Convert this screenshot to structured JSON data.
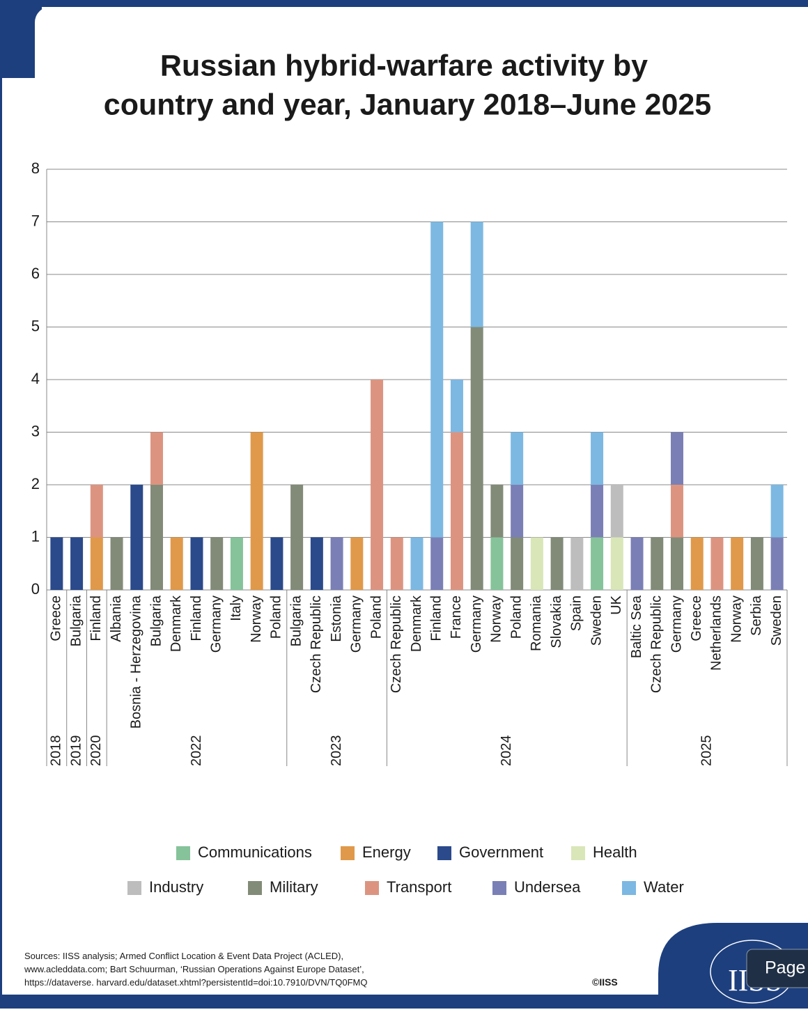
{
  "chart_data": {
    "type": "stacked_bar",
    "title": [
      "Russian hybrid-warfare activity by",
      "country and year, January 2018–June 2025"
    ],
    "groups": [
      {
        "label": "2018",
        "categories": [
          "Greece"
        ]
      },
      {
        "label": "2019",
        "categories": [
          "Bulgaria"
        ]
      },
      {
        "label": "2020",
        "categories": [
          "Finland"
        ]
      },
      {
        "label": "2022",
        "categories": [
          "Albania",
          "Bosnia - Herzegovina",
          "Bulgaria",
          "Denmark",
          "Finland",
          "Germany",
          "Italy",
          "Norway",
          "Poland"
        ]
      },
      {
        "label": "2023",
        "categories": [
          "Bulgaria",
          "Czech Republic",
          "Estonia",
          "Germany",
          "Poland"
        ]
      },
      {
        "label": "2024",
        "categories": [
          "Czech Republic",
          "Denmark",
          "Finland",
          "France",
          "Germany",
          "Norway",
          "Poland",
          "Romania",
          "Slovakia",
          "Spain",
          "Sweden",
          "UK"
        ]
      },
      {
        "label": "2025",
        "categories": [
          "Baltic Sea",
          "Czech Republic",
          "Germany",
          "Greece",
          "Netherlands",
          "Norway",
          "Serbia",
          "Sweden"
        ]
      }
    ],
    "series": [
      {
        "name": "Communications",
        "color": "#86c39a",
        "values": [
          0,
          0,
          0,
          0,
          0,
          0,
          0,
          0,
          0,
          1,
          0,
          0,
          0,
          0,
          0,
          0,
          0,
          0,
          0,
          0,
          0,
          0,
          1,
          0,
          0,
          0,
          0,
          1,
          0,
          0,
          0,
          0,
          0,
          0,
          0,
          0,
          0
        ]
      },
      {
        "name": "Energy",
        "color": "#e0994a",
        "values": [
          0,
          0,
          1,
          0,
          0,
          0,
          1,
          0,
          0,
          0,
          3,
          0,
          0,
          0,
          0,
          1,
          0,
          0,
          0,
          0,
          0,
          0,
          0,
          0,
          0,
          0,
          0,
          0,
          0,
          0,
          0,
          0,
          1,
          0,
          1,
          0,
          0
        ]
      },
      {
        "name": "Government",
        "color": "#2b4a8b",
        "values": [
          1,
          1,
          0,
          0,
          2,
          0,
          0,
          1,
          0,
          0,
          0,
          1,
          0,
          1,
          0,
          0,
          0,
          0,
          0,
          0,
          0,
          0,
          0,
          0,
          0,
          0,
          0,
          0,
          0,
          0,
          0,
          0,
          0,
          0,
          0,
          0,
          0
        ]
      },
      {
        "name": "Health",
        "color": "#d9e6b8",
        "values": [
          0,
          0,
          0,
          0,
          0,
          0,
          0,
          0,
          0,
          0,
          0,
          0,
          0,
          0,
          0,
          0,
          0,
          0,
          0,
          0,
          0,
          0,
          0,
          0,
          1,
          0,
          0,
          0,
          1,
          0,
          0,
          0,
          0,
          0,
          0,
          0,
          0
        ]
      },
      {
        "name": "Industry",
        "color": "#bdbdbd",
        "values": [
          0,
          0,
          0,
          0,
          0,
          0,
          0,
          0,
          0,
          0,
          0,
          0,
          0,
          0,
          0,
          0,
          0,
          0,
          0,
          0,
          0,
          0,
          0,
          0,
          0,
          0,
          1,
          0,
          1,
          0,
          0,
          0,
          0,
          0,
          0,
          0,
          0
        ]
      },
      {
        "name": "Military",
        "color": "#828b78",
        "values": [
          0,
          0,
          0,
          1,
          0,
          2,
          0,
          0,
          1,
          0,
          0,
          0,
          2,
          0,
          0,
          0,
          0,
          0,
          0,
          0,
          0,
          5,
          1,
          1,
          0,
          1,
          0,
          0,
          0,
          0,
          1,
          1,
          0,
          0,
          0,
          1,
          0
        ]
      },
      {
        "name": "Transport",
        "color": "#dc9480",
        "values": [
          0,
          0,
          1,
          0,
          0,
          1,
          0,
          0,
          0,
          0,
          0,
          0,
          0,
          0,
          0,
          0,
          4,
          1,
          0,
          0,
          3,
          0,
          0,
          0,
          0,
          0,
          0,
          0,
          0,
          0,
          0,
          1,
          0,
          1,
          0,
          0,
          0
        ]
      },
      {
        "name": "Undersea",
        "color": "#7a80b5",
        "values": [
          0,
          0,
          0,
          0,
          0,
          0,
          0,
          0,
          0,
          0,
          0,
          0,
          0,
          0,
          1,
          0,
          0,
          0,
          0,
          1,
          0,
          0,
          0,
          1,
          0,
          0,
          0,
          1,
          0,
          1,
          0,
          1,
          0,
          0,
          0,
          0,
          1
        ]
      },
      {
        "name": "Water",
        "color": "#7cb8e2",
        "values": [
          0,
          0,
          0,
          0,
          0,
          0,
          0,
          0,
          0,
          0,
          0,
          0,
          0,
          0,
          0,
          0,
          0,
          0,
          1,
          6,
          1,
          2,
          0,
          1,
          0,
          0,
          0,
          1,
          0,
          0,
          0,
          0,
          0,
          0,
          0,
          0,
          1
        ]
      }
    ],
    "ylim": [
      0,
      8
    ],
    "yticks": [
      0,
      1,
      2,
      3,
      4,
      5,
      6,
      7,
      8
    ],
    "grid": true,
    "sources": [
      "Sources: IISS analysis; Armed Conflict Location & Event Data Project (ACLED),",
      "www.acleddata.com; Bart Schuurman, ‘Russian Operations Against Europe Dataset’,",
      "https://dataverse. harvard.edu/dataset.xhtml?persistentId=doi:10.7910/DVN/TQ0FMQ"
    ],
    "copyright": "©IISS",
    "logo": "IISS"
  },
  "page_button": "Page"
}
